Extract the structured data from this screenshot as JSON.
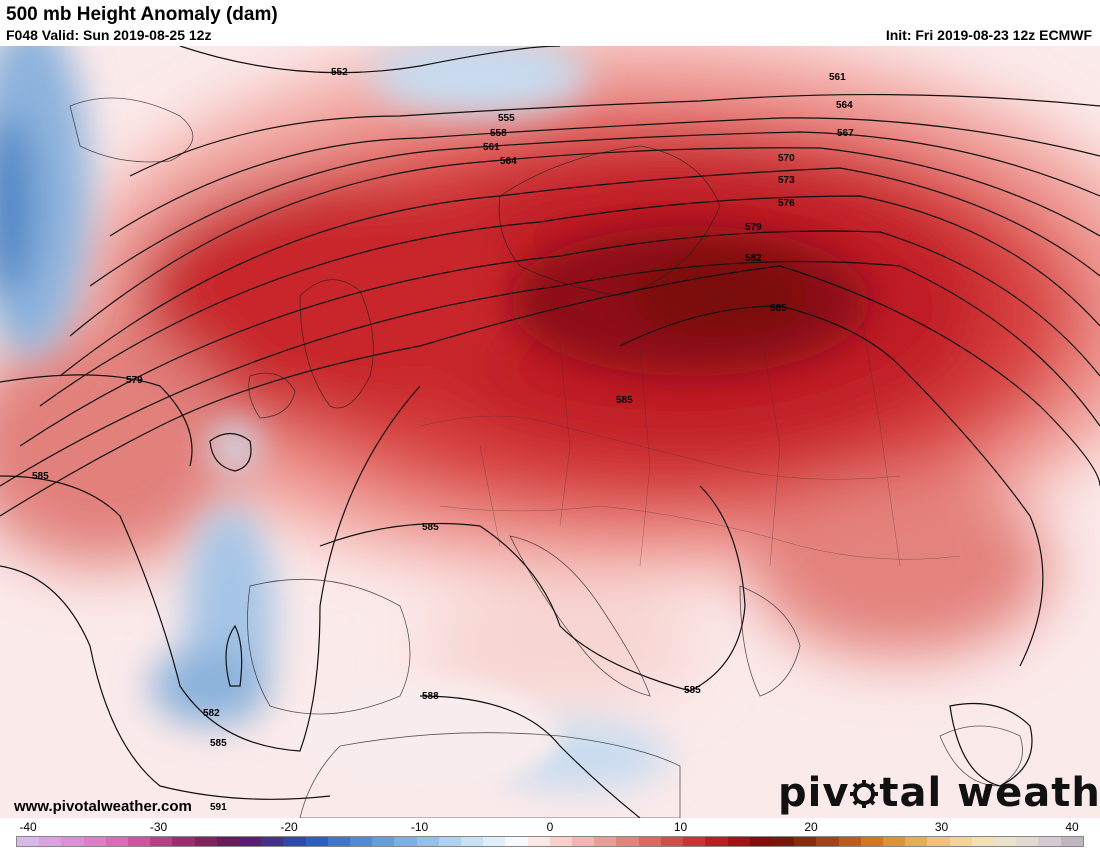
{
  "header": {
    "title": "500 mb Height Anomaly (dam)",
    "valid": "F048 Valid: Sun 2019-08-25 12z",
    "init": "Init: Fri 2019-08-23 12z ECMWF"
  },
  "footer": {
    "website": "www.pivotalweather.com",
    "brand_left": "piv",
    "brand_right": "tal weather"
  },
  "colorbar": {
    "ticks": [
      "-40",
      "-30",
      "-20",
      "-10",
      "0",
      "10",
      "20",
      "30",
      "40"
    ],
    "colors": [
      "#d8b8e8",
      "#d9a3dd",
      "#dd8fd2",
      "#e27cc6",
      "#e069b6",
      "#d1539f",
      "#b83f87",
      "#9f2c70",
      "#86205e",
      "#6c1a5c",
      "#581e74",
      "#43308f",
      "#3048ad",
      "#2f5ec3",
      "#3f74cf",
      "#5288d7",
      "#679bdd",
      "#7eaee3",
      "#97c0e9",
      "#b0d2ef",
      "#c8e1f5",
      "#e0eef9",
      "#f6fafd",
      "#fbe7e5",
      "#f7cfcb",
      "#f1b6b1",
      "#eb9c97",
      "#e4827d",
      "#dc6764",
      "#d34c4c",
      "#c83437",
      "#b81f25",
      "#a11219",
      "#870c12",
      "#7a1510",
      "#8c2a10",
      "#a54214",
      "#bf5b19",
      "#d3761f",
      "#e09334",
      "#e8ac53",
      "#efc275",
      "#f3d497",
      "#f2dfb5",
      "#ece2ca",
      "#e2d9d2",
      "#d3cbd0",
      "#bfb6c2"
    ]
  },
  "contours": {
    "labels": [
      "552",
      "555",
      "558",
      "561",
      "564",
      "561",
      "564",
      "567",
      "570",
      "573",
      "576",
      "579",
      "582",
      "585",
      "579",
      "585",
      "585",
      "585",
      "588",
      "582",
      "585",
      "585",
      "591"
    ]
  },
  "colors": {
    "accent_red": "#c8191e",
    "deep_red": "#8a0a0a",
    "blue": "#7fa8d6"
  }
}
